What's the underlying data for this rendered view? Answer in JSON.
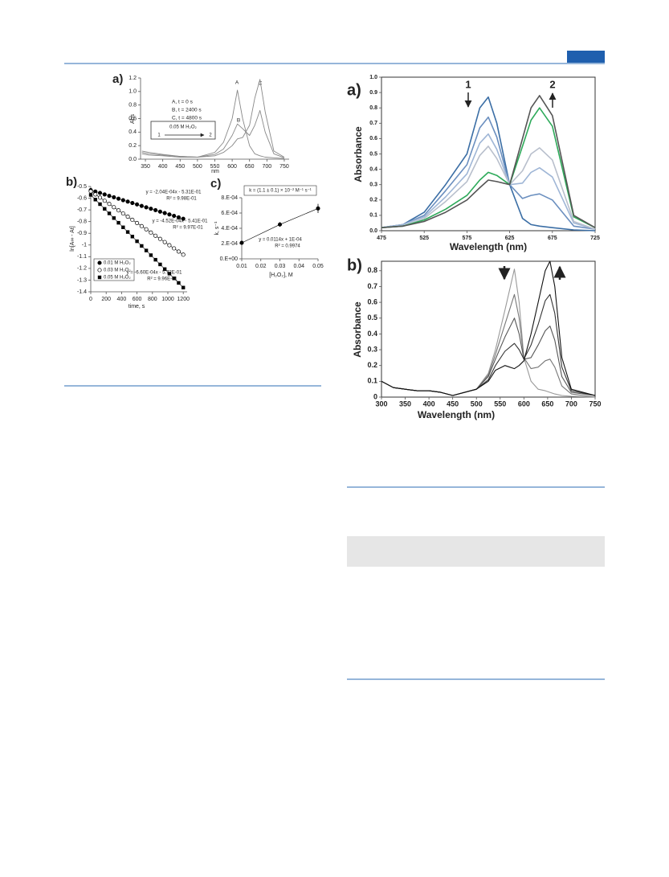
{
  "chart_data": [
    {
      "type": "line",
      "label": "a)",
      "xlabel": "nm",
      "ylabel": "Abs",
      "xlim": [
        336,
        764
      ],
      "xticks": [
        350,
        400,
        450,
        500,
        550,
        600,
        650,
        700,
        750
      ],
      "ylim": [
        0,
        1.2
      ],
      "yticks": [
        {
          "value": 0,
          "label": "0.0"
        },
        {
          "value": 0.2,
          "label": "0.2"
        },
        {
          "value": 0.4,
          "label": "0.4"
        },
        {
          "value": 0.6,
          "label": "0.6"
        },
        {
          "value": 0.8,
          "label": "0.8"
        },
        {
          "value": 1,
          "label": "1.0"
        },
        {
          "value": 1.2,
          "label": "1.2"
        }
      ],
      "annotations": [
        "A, t = 0 s",
        "B, t = 2400 s",
        "C, t = 4800 s",
        "A",
        "B",
        "C",
        "0.05 M H₂O₂",
        "1",
        "2"
      ],
      "x": [
        340,
        360,
        400,
        450,
        500,
        550,
        575,
        600,
        615,
        630,
        650,
        665,
        680,
        695,
        720,
        750
      ],
      "series": [
        {
          "color": "#888888",
          "values": [
            0.12,
            0.1,
            0.07,
            0.04,
            0.03,
            0.1,
            0.25,
            0.6,
            1.02,
            0.6,
            0.2,
            0.08,
            0.05,
            0.03,
            0.02,
            0.01
          ]
        },
        {
          "color": "#888888",
          "values": [
            0.1,
            0.08,
            0.06,
            0.04,
            0.03,
            0.07,
            0.15,
            0.35,
            0.52,
            0.45,
            0.35,
            0.5,
            0.72,
            0.4,
            0.08,
            0.02
          ]
        },
        {
          "color": "#888888",
          "values": [
            0.08,
            0.06,
            0.05,
            0.03,
            0.03,
            0.05,
            0.1,
            0.2,
            0.3,
            0.32,
            0.5,
            0.9,
            1.18,
            0.7,
            0.12,
            0.03
          ]
        }
      ]
    },
    {
      "type": "scatter",
      "label": "b)",
      "xlabel": "time, s",
      "ylabel": "ln[A∞ - At]",
      "xlim": [
        0,
        1250
      ],
      "xticks": [
        0,
        200,
        400,
        600,
        800,
        1000,
        1200
      ],
      "ylim": [
        -1.4,
        -0.5
      ],
      "yticks": [
        -0.5,
        -0.6,
        -0.7,
        -0.8,
        -0.9,
        -1,
        -1.1,
        -1.2,
        -1.3,
        -1.4
      ],
      "annotations": [
        "y = -2.04E-04x - 5.31E-01",
        "R² = 9.98E-01",
        "y = -4.52E-04x - 5.41E-01",
        "R² = 9.97E-01",
        "y = -6.60E-04x - 5.72E-01",
        "R² = 9.96E-01"
      ],
      "x": [
        0,
        60,
        120,
        180,
        240,
        300,
        360,
        420,
        480,
        540,
        600,
        660,
        720,
        780,
        840,
        900,
        960,
        1020,
        1080,
        1140,
        1200
      ],
      "series": [
        {
          "name": "0.01 M H₂O₂",
          "marker": "circle-filled",
          "color": "#000000",
          "values": [
            -0.531,
            -0.543,
            -0.555,
            -0.568,
            -0.58,
            -0.592,
            -0.604,
            -0.617,
            -0.629,
            -0.641,
            -0.653,
            -0.666,
            -0.678,
            -0.69,
            -0.702,
            -0.715,
            -0.727,
            -0.739,
            -0.751,
            -0.764,
            -0.776
          ]
        },
        {
          "name": "0.03 M H₂O₂",
          "marker": "circle-open",
          "color": "#000000",
          "values": [
            -0.541,
            -0.568,
            -0.595,
            -0.622,
            -0.649,
            -0.677,
            -0.704,
            -0.731,
            -0.758,
            -0.785,
            -0.812,
            -0.839,
            -0.866,
            -0.894,
            -0.921,
            -0.948,
            -0.975,
            -1.002,
            -1.029,
            -1.056,
            -1.083
          ]
        },
        {
          "name": "0.05 M H₂O₂",
          "marker": "square",
          "color": "#000000",
          "values": [
            -0.572,
            -0.612,
            -0.651,
            -0.691,
            -0.73,
            -0.77,
            -0.81,
            -0.849,
            -0.889,
            -0.928,
            -0.968,
            -1.008,
            -1.047,
            -1.087,
            -1.126,
            -1.166,
            -1.206,
            -1.245,
            -1.285,
            -1.324,
            -1.364
          ]
        }
      ]
    },
    {
      "type": "scatter",
      "label": "c)",
      "xlabel": "[H₂O₂], M",
      "ylabel": "k, s⁻¹",
      "xlim": [
        0.01,
        0.05
      ],
      "xticks": [
        0.01,
        0.02,
        0.03,
        0.04,
        0.05
      ],
      "ylim": [
        0,
        0.0008
      ],
      "yticks": [
        {
          "value": 0,
          "label": "0.E+00"
        },
        {
          "value": 0.0002,
          "label": "2.E-04"
        },
        {
          "value": 0.0004,
          "label": "4.E-04"
        },
        {
          "value": 0.0006,
          "label": "6.E-04"
        },
        {
          "value": 0.0008,
          "label": "8.E-04"
        }
      ],
      "annotations": [
        "k = (1.1 ± 0.1) × 10⁻² M⁻¹ s⁻¹",
        "y = 0.0114x + 1E-04",
        "R² = 0.9974"
      ],
      "x": [
        0.01,
        0.03,
        0.05
      ],
      "series": [
        {
          "marker": "circle-filled",
          "color": "#000000",
          "values": [
            0.00021,
            0.00045,
            0.00066
          ],
          "errors": [
            0,
            3e-05,
            6e-05
          ]
        }
      ]
    },
    {
      "type": "line",
      "label": "a)",
      "xlabel": "Wavelength (nm)",
      "ylabel": "Absorbance",
      "xlim": [
        475,
        725
      ],
      "xticks": [
        475,
        525,
        575,
        625,
        675,
        725
      ],
      "ylim": [
        0,
        1
      ],
      "yticks": [
        {
          "value": 0,
          "label": "0.0"
        },
        {
          "value": 0.1,
          "label": "0.1"
        },
        {
          "value": 0.2,
          "label": "0.2"
        },
        {
          "value": 0.3,
          "label": "0.3"
        },
        {
          "value": 0.4,
          "label": "0.4"
        },
        {
          "value": 0.5,
          "label": "0.5"
        },
        {
          "value": 0.6,
          "label": "0.6"
        },
        {
          "value": 0.7,
          "label": "0.7"
        },
        {
          "value": 0.8,
          "label": "0.8"
        },
        {
          "value": 0.9,
          "label": "0.9"
        },
        {
          "value": 1,
          "label": "1.0"
        }
      ],
      "annotations": [
        "1",
        "2"
      ],
      "x": [
        475,
        500,
        525,
        550,
        575,
        590,
        600,
        610,
        625,
        640,
        650,
        660,
        675,
        700,
        725
      ],
      "series": [
        {
          "color": "#3b6ea5",
          "values": [
            0.02,
            0.04,
            0.12,
            0.3,
            0.5,
            0.8,
            0.87,
            0.7,
            0.3,
            0.08,
            0.04,
            0.03,
            0.02,
            0.005,
            0
          ]
        },
        {
          "color": "#6b8fbf",
          "values": [
            0.02,
            0.04,
            0.1,
            0.26,
            0.43,
            0.67,
            0.74,
            0.61,
            0.3,
            0.21,
            0.23,
            0.24,
            0.2,
            0.03,
            0.01
          ]
        },
        {
          "color": "#9fb6d6",
          "values": [
            0.02,
            0.04,
            0.09,
            0.22,
            0.37,
            0.57,
            0.63,
            0.53,
            0.3,
            0.31,
            0.38,
            0.41,
            0.35,
            0.05,
            0.01
          ]
        },
        {
          "color": "#b8bfcc",
          "values": [
            0.02,
            0.03,
            0.08,
            0.19,
            0.32,
            0.49,
            0.55,
            0.47,
            0.3,
            0.39,
            0.5,
            0.54,
            0.46,
            0.06,
            0.01
          ]
        },
        {
          "color": "#2eaa5a",
          "values": [
            0.02,
            0.03,
            0.07,
            0.14,
            0.23,
            0.33,
            0.38,
            0.36,
            0.3,
            0.55,
            0.72,
            0.8,
            0.68,
            0.09,
            0.02
          ]
        },
        {
          "color": "#555555",
          "values": [
            0.02,
            0.03,
            0.06,
            0.12,
            0.2,
            0.28,
            0.33,
            0.32,
            0.3,
            0.6,
            0.8,
            0.88,
            0.75,
            0.1,
            0.02
          ]
        }
      ]
    },
    {
      "type": "line",
      "label": "b)",
      "xlabel": "Wavelength (nm)",
      "ylabel": "Absorbance",
      "xlim": [
        300,
        750
      ],
      "xticks": [
        300,
        350,
        400,
        450,
        500,
        550,
        600,
        650,
        700,
        750
      ],
      "ylim": [
        0,
        0.86
      ],
      "yticks": [
        0,
        0.1,
        0.2,
        0.3,
        0.4,
        0.5,
        0.6,
        0.7,
        0.8
      ],
      "x": [
        300,
        325,
        350,
        375,
        400,
        425,
        450,
        500,
        525,
        540,
        560,
        580,
        590,
        600,
        615,
        630,
        645,
        655,
        665,
        680,
        700,
        750
      ],
      "series": [
        {
          "color": "#999999",
          "values": [
            0.1,
            0.06,
            0.05,
            0.04,
            0.04,
            0.03,
            0.01,
            0.05,
            0.15,
            0.3,
            0.55,
            0.81,
            0.6,
            0.25,
            0.1,
            0.05,
            0.04,
            0.03,
            0.02,
            0.01,
            0.005,
            0
          ]
        },
        {
          "color": "#777777",
          "values": [
            0.1,
            0.06,
            0.05,
            0.04,
            0.04,
            0.03,
            0.01,
            0.05,
            0.14,
            0.27,
            0.46,
            0.65,
            0.5,
            0.25,
            0.18,
            0.19,
            0.23,
            0.24,
            0.19,
            0.07,
            0.02,
            0
          ]
        },
        {
          "color": "#555555",
          "values": [
            0.1,
            0.06,
            0.05,
            0.04,
            0.04,
            0.03,
            0.01,
            0.05,
            0.13,
            0.24,
            0.38,
            0.5,
            0.4,
            0.24,
            0.25,
            0.33,
            0.42,
            0.45,
            0.36,
            0.13,
            0.03,
            0.01
          ]
        },
        {
          "color": "#333333",
          "values": [
            0.1,
            0.06,
            0.05,
            0.04,
            0.04,
            0.03,
            0.01,
            0.05,
            0.11,
            0.2,
            0.29,
            0.34,
            0.3,
            0.24,
            0.33,
            0.46,
            0.61,
            0.65,
            0.53,
            0.19,
            0.04,
            0.01
          ]
        },
        {
          "color": "#111111",
          "values": [
            0.1,
            0.06,
            0.05,
            0.04,
            0.04,
            0.03,
            0.01,
            0.05,
            0.1,
            0.17,
            0.2,
            0.18,
            0.2,
            0.23,
            0.4,
            0.6,
            0.8,
            0.86,
            0.7,
            0.25,
            0.05,
            0.01
          ]
        }
      ]
    }
  ]
}
